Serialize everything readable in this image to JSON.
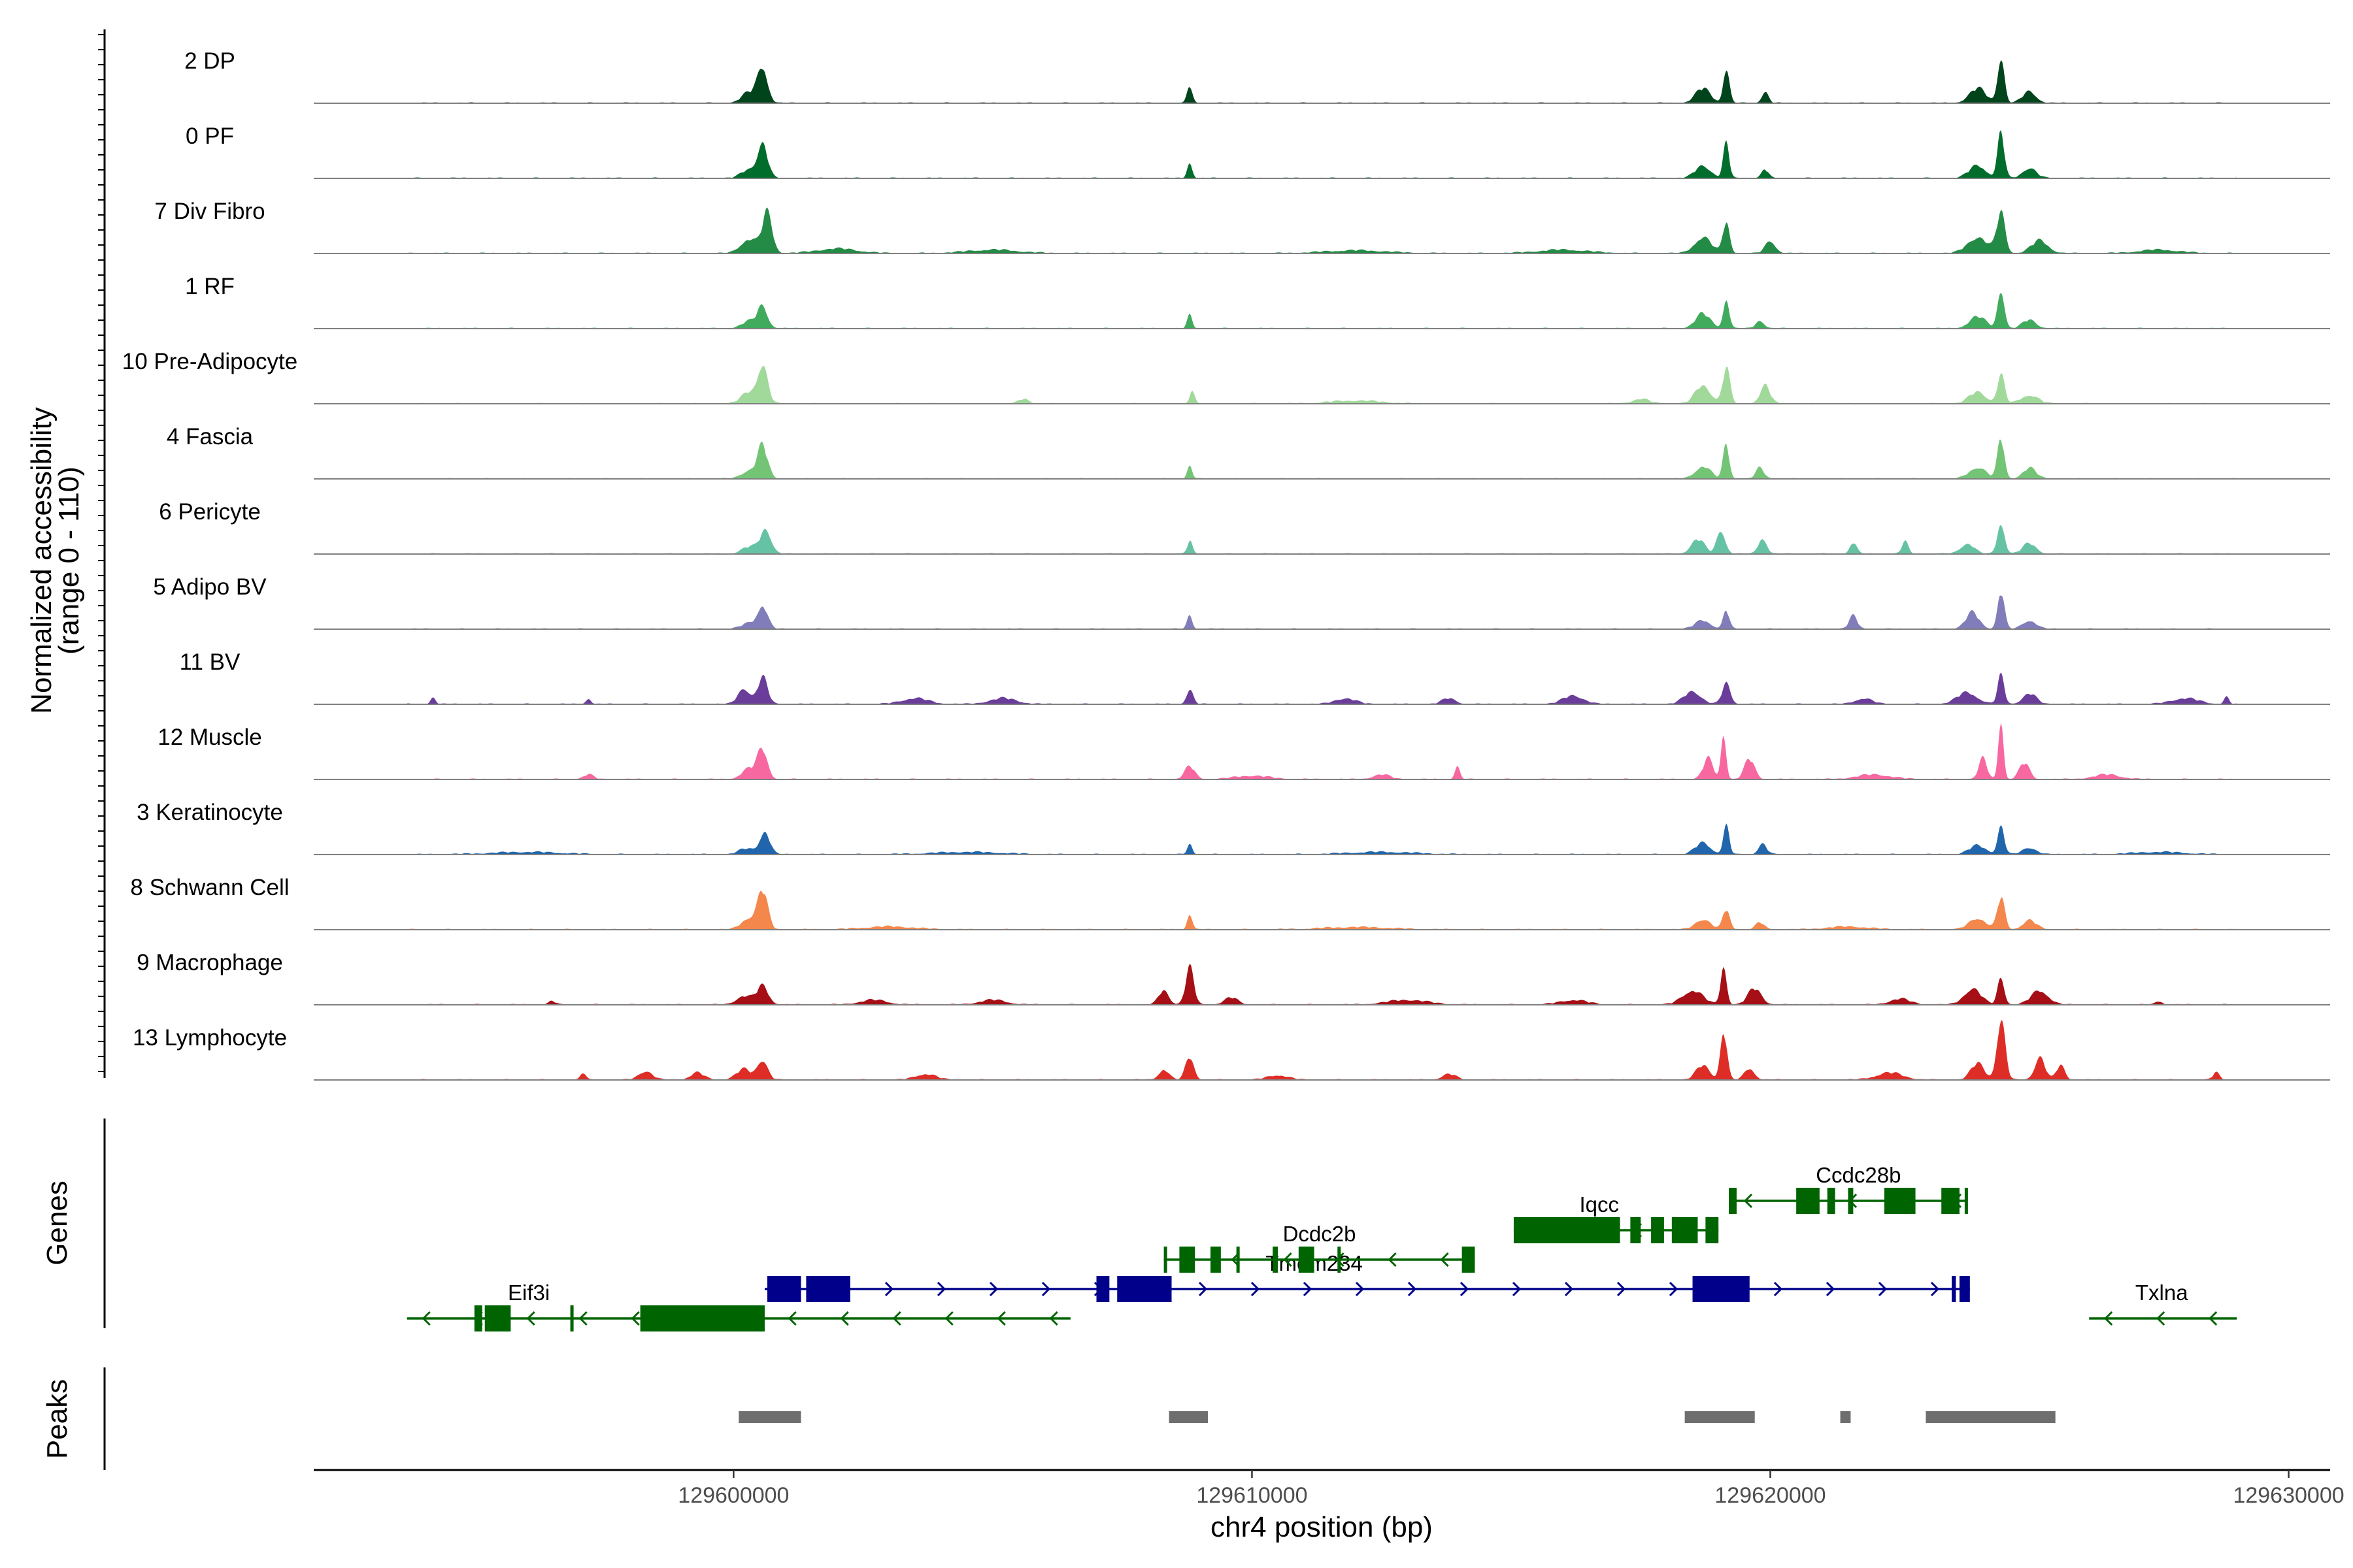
{
  "chart_data": {
    "type": "area",
    "title": "",
    "xlabel": "chr4 position (bp)",
    "ylabel": [
      "Normalized accessibility",
      "(range 0 - 110)"
    ],
    "xlim": [
      129591900,
      129630800
    ],
    "ylim": [
      0,
      110
    ],
    "x_ticks": [
      129600000,
      129610000,
      129620000,
      129630000
    ],
    "x_tick_labels": [
      "129600000",
      "129610000",
      "129620000",
      "129630000"
    ],
    "panel_titles": {
      "genes": "Genes",
      "peaks": "Peaks"
    },
    "series": [
      {
        "name": "2 DP",
        "color": "#00441b",
        "peaks": [
          [
            129600560,
            62,
            300
          ],
          [
            129600300,
            18,
            450
          ],
          [
            129608800,
            30,
            150
          ],
          [
            129619150,
            62,
            180
          ],
          [
            129618700,
            25,
            450
          ],
          [
            129619900,
            20,
            200
          ],
          [
            129624450,
            82,
            200
          ],
          [
            129624000,
            25,
            500
          ],
          [
            129625000,
            20,
            400
          ]
        ]
      },
      {
        "name": "0 PF",
        "color": "#006d2c",
        "peaks": [
          [
            129600560,
            58,
            300
          ],
          [
            129600300,
            15,
            450
          ],
          [
            129608800,
            28,
            150
          ],
          [
            129619150,
            58,
            180
          ],
          [
            129618700,
            22,
            450
          ],
          [
            129619900,
            15,
            200
          ],
          [
            129624450,
            78,
            200
          ],
          [
            129624000,
            22,
            500
          ],
          [
            129625000,
            18,
            400
          ]
        ]
      },
      {
        "name": "7 Div Fibro",
        "color": "#238b45",
        "peaks": [
          [
            129600650,
            68,
            300
          ],
          [
            129600300,
            25,
            500
          ],
          [
            129619150,
            55,
            200
          ],
          [
            129618700,
            28,
            500
          ],
          [
            129620000,
            22,
            300
          ],
          [
            129624450,
            70,
            250
          ],
          [
            129624000,
            28,
            600
          ],
          [
            129625200,
            22,
            500
          ],
          [
            129602000,
            8,
            1200
          ],
          [
            129605000,
            6,
            1500
          ],
          [
            129612000,
            5,
            1800
          ],
          [
            129616000,
            6,
            1500
          ],
          [
            129627500,
            6,
            1200
          ]
        ]
      },
      {
        "name": "1 RF",
        "color": "#41ab5d",
        "peaks": [
          [
            129600560,
            38,
            300
          ],
          [
            129600300,
            12,
            450
          ],
          [
            129608800,
            22,
            150
          ],
          [
            129619150,
            52,
            180
          ],
          [
            129618700,
            25,
            450
          ],
          [
            129619800,
            14,
            250
          ],
          [
            129624450,
            70,
            200
          ],
          [
            129624000,
            20,
            500
          ],
          [
            129625000,
            15,
            400
          ]
        ]
      },
      {
        "name": "10 Pre-Adipocyte",
        "color": "#a1d99b",
        "peaks": [
          [
            129600560,
            65,
            300
          ],
          [
            129600300,
            20,
            450
          ],
          [
            129608850,
            25,
            150
          ],
          [
            129619150,
            60,
            220
          ],
          [
            129618700,
            32,
            450
          ],
          [
            129619900,
            30,
            300
          ],
          [
            129624450,
            48,
            220
          ],
          [
            129624000,
            20,
            500
          ],
          [
            129625000,
            15,
            500
          ],
          [
            129605600,
            8,
            300
          ],
          [
            129612000,
            5,
            1500
          ],
          [
            129617500,
            8,
            500
          ]
        ]
      },
      {
        "name": "4 Fascia",
        "color": "#74c476",
        "peaks": [
          [
            129600560,
            55,
            300
          ],
          [
            129600300,
            14,
            450
          ],
          [
            129608800,
            22,
            150
          ],
          [
            129619150,
            60,
            180
          ],
          [
            129618700,
            22,
            450
          ],
          [
            129619800,
            18,
            250
          ],
          [
            129624450,
            70,
            200
          ],
          [
            129624000,
            20,
            500
          ],
          [
            129625000,
            18,
            400
          ]
        ]
      },
      {
        "name": "6 Pericyte",
        "color": "#66c2a4",
        "peaks": [
          [
            129600620,
            42,
            330
          ],
          [
            129600300,
            12,
            450
          ],
          [
            129608800,
            22,
            150
          ],
          [
            129619050,
            42,
            250
          ],
          [
            129618600,
            25,
            400
          ],
          [
            129619850,
            28,
            250
          ],
          [
            129621600,
            20,
            200
          ],
          [
            129622600,
            20,
            200
          ],
          [
            129624450,
            55,
            220
          ],
          [
            129623800,
            18,
            400
          ],
          [
            129625000,
            18,
            400
          ]
        ]
      },
      {
        "name": "5 Adipo BV",
        "color": "#807dba",
        "peaks": [
          [
            129600560,
            40,
            300
          ],
          [
            129600300,
            10,
            450
          ],
          [
            129608800,
            25,
            150
          ],
          [
            129619150,
            32,
            180
          ],
          [
            129618700,
            15,
            450
          ],
          [
            129621600,
            22,
            250
          ],
          [
            129624450,
            65,
            200
          ],
          [
            129623900,
            28,
            400
          ],
          [
            129625000,
            15,
            400
          ]
        ]
      },
      {
        "name": "11 BV",
        "color": "#6a3d9a",
        "peaks": [
          [
            129600560,
            45,
            300
          ],
          [
            129600200,
            28,
            350
          ],
          [
            129608800,
            25,
            200
          ],
          [
            129619150,
            35,
            250
          ],
          [
            129618500,
            22,
            500
          ],
          [
            129624450,
            48,
            200
          ],
          [
            129623800,
            20,
            600
          ],
          [
            129625000,
            18,
            400
          ],
          [
            129594200,
            12,
            150
          ],
          [
            129597200,
            10,
            150
          ],
          [
            129603500,
            10,
            800
          ],
          [
            129605200,
            10,
            800
          ],
          [
            129611800,
            10,
            600
          ],
          [
            129613800,
            10,
            400
          ],
          [
            129616200,
            15,
            600
          ],
          [
            129621800,
            10,
            500
          ],
          [
            129628000,
            10,
            800
          ],
          [
            129628800,
            12,
            150
          ]
        ]
      },
      {
        "name": "12 Muscle",
        "color": "#f768a1",
        "peaks": [
          [
            129600560,
            50,
            300
          ],
          [
            129600300,
            18,
            450
          ],
          [
            129608800,
            22,
            300
          ],
          [
            129619100,
            82,
            150
          ],
          [
            129618800,
            35,
            300
          ],
          [
            129619600,
            35,
            300
          ],
          [
            129624450,
            110,
            150
          ],
          [
            129624100,
            35,
            250
          ],
          [
            129624900,
            28,
            300
          ],
          [
            129613960,
            22,
            150
          ],
          [
            129597200,
            8,
            300
          ],
          [
            129610000,
            6,
            1000
          ],
          [
            129612500,
            8,
            500
          ],
          [
            129622000,
            8,
            1000
          ],
          [
            129626500,
            8,
            800
          ]
        ]
      },
      {
        "name": "3 Keratinocyte",
        "color": "#2166ac",
        "peaks": [
          [
            129600600,
            40,
            300
          ],
          [
            129600250,
            10,
            450
          ],
          [
            129608800,
            18,
            150
          ],
          [
            129619150,
            48,
            180
          ],
          [
            129618700,
            20,
            450
          ],
          [
            129619850,
            18,
            250
          ],
          [
            129624450,
            48,
            200
          ],
          [
            129624000,
            15,
            500
          ],
          [
            129625000,
            12,
            400
          ],
          [
            129596000,
            4,
            2000
          ],
          [
            129604500,
            4,
            2000
          ],
          [
            129612500,
            4,
            2000
          ],
          [
            129627500,
            4,
            1500
          ]
        ]
      },
      {
        "name": "8 Schwann Cell",
        "color": "#f4874c",
        "peaks": [
          [
            129600560,
            65,
            300
          ],
          [
            129600300,
            20,
            450
          ],
          [
            129608800,
            28,
            150
          ],
          [
            129619150,
            35,
            200
          ],
          [
            129618700,
            18,
            450
          ],
          [
            129619800,
            12,
            250
          ],
          [
            129624450,
            55,
            220
          ],
          [
            129624000,
            20,
            500
          ],
          [
            129625000,
            16,
            400
          ],
          [
            129603000,
            5,
            1500
          ],
          [
            129612000,
            4,
            2000
          ],
          [
            129621500,
            5,
            1200
          ]
        ]
      },
      {
        "name": "9 Macrophage",
        "color": "#a50f15",
        "peaks": [
          [
            129600560,
            32,
            350
          ],
          [
            129600200,
            15,
            450
          ],
          [
            129608800,
            62,
            250
          ],
          [
            129608300,
            25,
            300
          ],
          [
            129609600,
            12,
            400
          ],
          [
            129619100,
            68,
            180
          ],
          [
            129618500,
            25,
            600
          ],
          [
            129619700,
            28,
            400
          ],
          [
            129624450,
            48,
            200
          ],
          [
            129623900,
            28,
            500
          ],
          [
            129625200,
            25,
            500
          ],
          [
            129622500,
            10,
            600
          ],
          [
            129596500,
            6,
            200
          ],
          [
            129602700,
            8,
            800
          ],
          [
            129605000,
            8,
            800
          ],
          [
            129613000,
            8,
            1200
          ],
          [
            129616200,
            8,
            800
          ],
          [
            129627500,
            6,
            200
          ]
        ]
      },
      {
        "name": "13 Lymphocyte",
        "color": "#de2d26",
        "peaks": [
          [
            129600560,
            35,
            300
          ],
          [
            129600200,
            18,
            450
          ],
          [
            129608800,
            40,
            250
          ],
          [
            129608300,
            18,
            300
          ],
          [
            129619100,
            85,
            200
          ],
          [
            129618700,
            25,
            400
          ],
          [
            129619600,
            20,
            300
          ],
          [
            129624450,
            105,
            250
          ],
          [
            129624000,
            28,
            400
          ],
          [
            129625200,
            40,
            300
          ],
          [
            129625600,
            25,
            250
          ],
          [
            129597100,
            12,
            150
          ],
          [
            129598300,
            15,
            400
          ],
          [
            129599300,
            12,
            400
          ],
          [
            129603700,
            10,
            600
          ],
          [
            129610500,
            8,
            600
          ],
          [
            129613800,
            10,
            400
          ],
          [
            129622300,
            12,
            800
          ],
          [
            129628600,
            12,
            200
          ]
        ]
      }
    ],
    "genes": [
      {
        "name": "Eif3i",
        "strand": "-",
        "start": 129593700,
        "end": 129606500,
        "color": "#006400",
        "label_x": 129596050,
        "row": 3,
        "exons": [
          [
            129595000,
            129595150
          ],
          [
            129595200,
            129595700
          ],
          [
            129596850,
            129596900
          ],
          [
            129598200,
            129600600
          ]
        ]
      },
      {
        "name": "Tmem234",
        "strand": "+",
        "start": 129600600,
        "end": 129623850,
        "color": "#00008b",
        "label_x": 129611200,
        "row": 2,
        "exons": [
          [
            129600650,
            129601300
          ],
          [
            129601400,
            129602250
          ],
          [
            129607000,
            129607250
          ],
          [
            129607400,
            129608450
          ],
          [
            129618500,
            129619600
          ],
          [
            129623500,
            129623580
          ],
          [
            129623650,
            129623850
          ]
        ]
      },
      {
        "name": "Dcdc2b",
        "strand": "-",
        "start": 129608300,
        "end": 129614300,
        "color": "#006400",
        "label_x": 129611300,
        "row": 1,
        "exons": [
          [
            129608300,
            129608350
          ],
          [
            129608600,
            129608900
          ],
          [
            129609200,
            129609400
          ],
          [
            129609700,
            129609750
          ],
          [
            129610400,
            129610500
          ],
          [
            129610900,
            129611200
          ],
          [
            129611650,
            129611700
          ],
          [
            129614050,
            129614300
          ]
        ]
      },
      {
        "name": "Iqcc",
        "strand": "-",
        "start": 129615050,
        "end": 129619000,
        "color": "#006400",
        "label_x": 129616700,
        "row": 0,
        "exons": [
          [
            129615050,
            129617100
          ],
          [
            129617300,
            129617500
          ],
          [
            129617700,
            129617950
          ],
          [
            129618100,
            129618600
          ],
          [
            129618750,
            129619000
          ]
        ]
      },
      {
        "name": "Ccdc28b",
        "strand": "-",
        "start": 129619200,
        "end": 129623800,
        "color": "#006400",
        "label_x": 129621700,
        "row": -1,
        "exons": [
          [
            129619200,
            129619350
          ],
          [
            129620500,
            129620950
          ],
          [
            129621100,
            129621250
          ],
          [
            129621500,
            129621600
          ],
          [
            129622200,
            129622800
          ],
          [
            129623300,
            129623650
          ],
          [
            129623750,
            129623800
          ]
        ]
      },
      {
        "name": "Txlna",
        "strand": "-",
        "start": 129626150,
        "end": 129629000,
        "color": "#006400",
        "label_x": 129627550,
        "row": 3,
        "exons": []
      }
    ],
    "peaks": [
      [
        129600100,
        129601300
      ],
      [
        129608400,
        129609150
      ],
      [
        129618350,
        129619700
      ],
      [
        129621350,
        129621550
      ],
      [
        129623000,
        129625500
      ]
    ]
  }
}
